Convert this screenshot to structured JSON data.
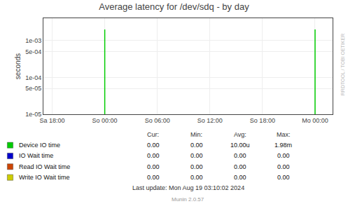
{
  "chart_data": {
    "type": "line",
    "title": "Average latency for /dev/sdq - by day",
    "ylabel": "seconds",
    "x": [
      21600,
      21600,
      21600,
      108000,
      108000
    ],
    "series": [
      {
        "name": "Device IO time",
        "color": "#00cc00",
        "values": [
          1e-05,
          0.00198,
          null,
          1e-05,
          0.00198
        ],
        "summary": [
          "0.00",
          "0.00",
          "10.00u",
          "1.98m"
        ]
      },
      {
        "name": "IO Wait time",
        "color": "#0000cc",
        "values": [
          null,
          null,
          null,
          null,
          null
        ],
        "summary": [
          "0.00",
          "0.00",
          "0.00",
          "0.00"
        ]
      },
      {
        "name": "Read IO Wait time",
        "color": "#cc4400",
        "values": [
          null,
          null,
          null,
          null,
          null
        ],
        "summary": [
          "0.00",
          "0.00",
          "0.00",
          "0.00"
        ]
      },
      {
        "name": "Write IO Wait time",
        "color": "#cccc00",
        "values": [
          null,
          null,
          null,
          null,
          null
        ],
        "summary": [
          "0.00",
          "0.00",
          "0.00",
          "0.00"
        ]
      }
    ],
    "summary_headers": [
      "Cur:",
      "Min:",
      "Avg:",
      "Max:"
    ],
    "xlim": [
      -3600,
      115200
    ],
    "xticks": [
      {
        "value": 0,
        "label": "Sa 18:00"
      },
      {
        "value": 21600,
        "label": "So 00:00"
      },
      {
        "value": 43200,
        "label": "So 06:00"
      },
      {
        "value": 64800,
        "label": "So 12:00"
      },
      {
        "value": 86400,
        "label": "So 18:00"
      },
      {
        "value": 108000,
        "label": "Mo 00:00"
      }
    ],
    "ylim": [
      1e-05,
      0.004
    ],
    "yticks": [
      {
        "value": 1e-05,
        "label": "1e-05"
      },
      {
        "value": 5e-05,
        "label": "5e-05"
      },
      {
        "value": 0.0001,
        "label": "1e-04"
      },
      {
        "value": 0.0005,
        "label": "5e-04"
      },
      {
        "value": 0.001,
        "label": "1e-03"
      }
    ],
    "log": "y",
    "grid": true,
    "annotations": [
      "Last update: Mon Aug 19 03:10:02 2024",
      "Munin 2.0.57",
      "RRDTOOL / TOBI OETIKER"
    ]
  }
}
